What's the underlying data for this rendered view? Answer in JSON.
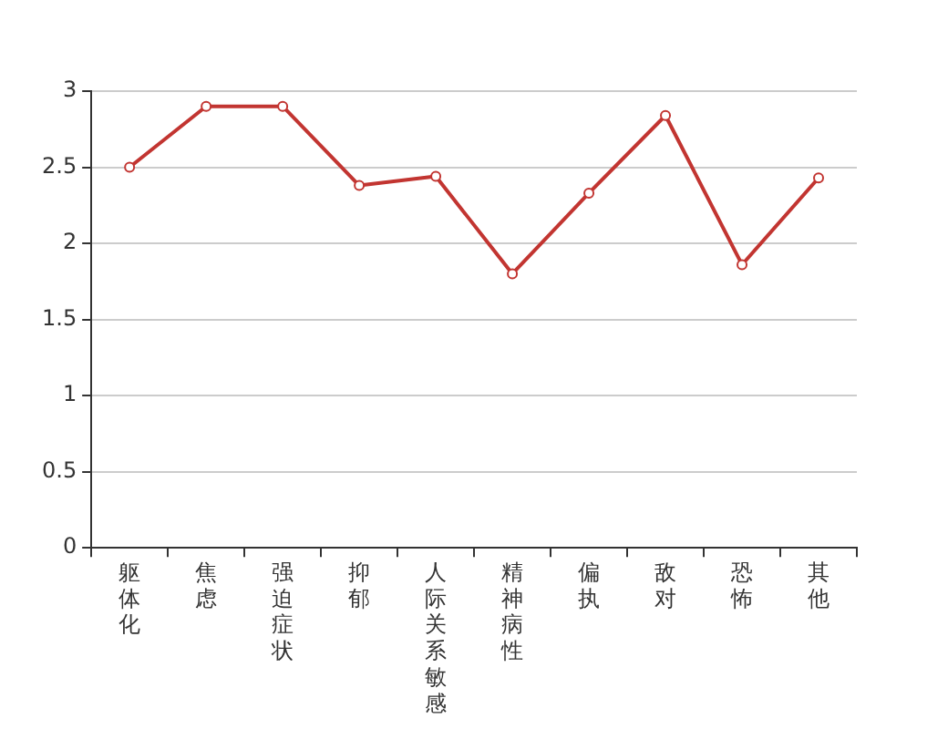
{
  "chart_data": {
    "type": "line",
    "categories": [
      "躯体化",
      "焦虑",
      "强迫症状",
      "抑郁",
      "人际关系敏感",
      "精神病性",
      "偏执",
      "敌对",
      "恐怖",
      "其他"
    ],
    "series": [
      {
        "color": "#c23531",
        "values": [
          2.5,
          2.9,
          2.9,
          2.38,
          2.44,
          1.8,
          2.33,
          2.84,
          1.86,
          2.43
        ]
      }
    ],
    "ylim": [
      0,
      3
    ],
    "yticks": [
      0,
      0.5,
      1,
      1.5,
      2,
      2.5,
      3
    ],
    "grid": "y",
    "legend": false,
    "marker": "circle",
    "line_style": "solid"
  }
}
